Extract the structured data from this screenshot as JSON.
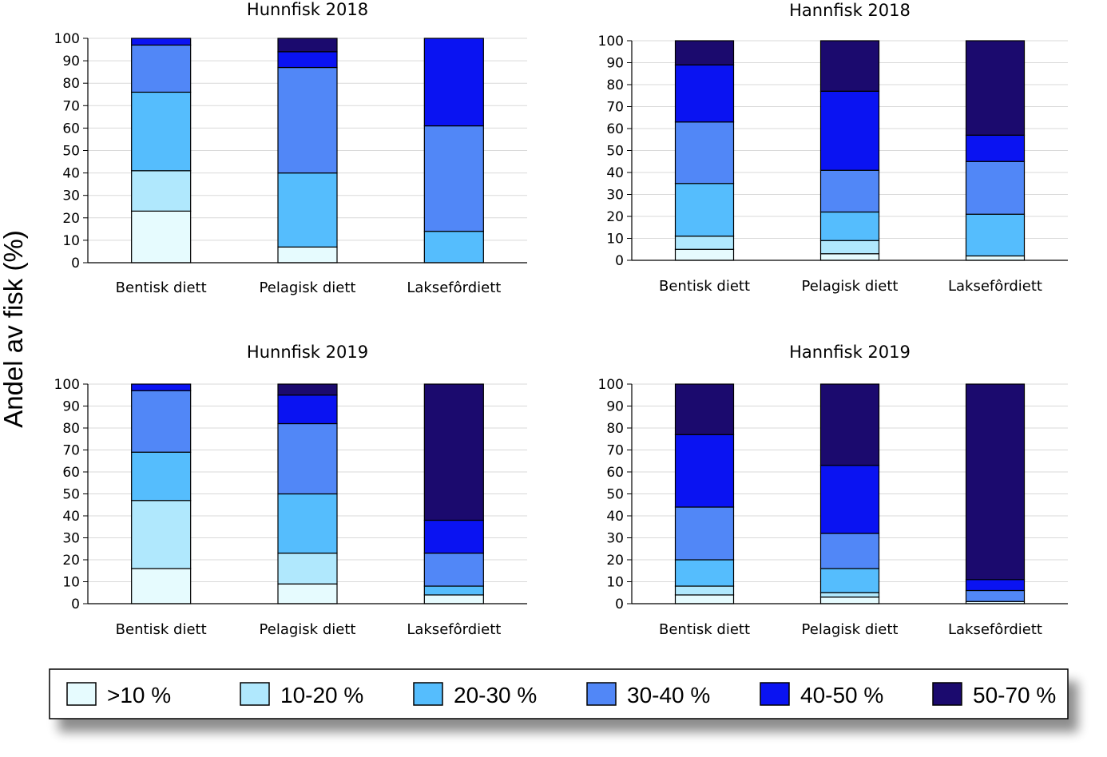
{
  "figure": {
    "ylabel": "Andel av fisk (%)"
  },
  "legend": [
    {
      "label": ">10 %",
      "color": "#e6fbfe"
    },
    {
      "label": "10-20 %",
      "color": "#b0e8fd"
    },
    {
      "label": "20-30 %",
      "color": "#55bdfd"
    },
    {
      "label": "30-40 %",
      "color": "#5187f7"
    },
    {
      "label": "40-50 %",
      "color": "#0a13f2"
    },
    {
      "label": "50-70 %",
      "color": "#1b0a6e"
    }
  ],
  "chart_data": [
    {
      "type": "bar",
      "stacked": true,
      "title": "Hunnfisk 2018",
      "categories": [
        "Bentisk diett",
        "Pelagisk diett",
        "Laksefôrdiett"
      ],
      "ylim": [
        0,
        100
      ],
      "yticks": [
        0,
        10,
        20,
        30,
        40,
        50,
        60,
        70,
        80,
        90,
        100
      ],
      "grid": true,
      "series": [
        {
          "name": ">10 %",
          "values": [
            23,
            7,
            0
          ]
        },
        {
          "name": "10-20 %",
          "values": [
            18,
            0,
            0
          ]
        },
        {
          "name": "20-30 %",
          "values": [
            35,
            33,
            14
          ]
        },
        {
          "name": "30-40 %",
          "values": [
            21,
            47,
            47
          ]
        },
        {
          "name": "40-50 %",
          "values": [
            3,
            7,
            39
          ]
        },
        {
          "name": "50-70 %",
          "values": [
            0,
            6,
            0
          ]
        }
      ]
    },
    {
      "type": "bar",
      "stacked": true,
      "title": "Hannfisk 2018",
      "categories": [
        "Bentisk diett",
        "Pelagisk diett",
        "Laksefôrdiett"
      ],
      "ylim": [
        0,
        100
      ],
      "yticks": [
        0,
        10,
        20,
        30,
        40,
        50,
        60,
        70,
        80,
        90,
        100
      ],
      "grid": true,
      "series": [
        {
          "name": ">10 %",
          "values": [
            5,
            3,
            2
          ]
        },
        {
          "name": "10-20 %",
          "values": [
            6,
            6,
            0
          ]
        },
        {
          "name": "20-30 %",
          "values": [
            24,
            13,
            19
          ]
        },
        {
          "name": "30-40 %",
          "values": [
            28,
            19,
            24
          ]
        },
        {
          "name": "40-50 %",
          "values": [
            26,
            36,
            12
          ]
        },
        {
          "name": "50-70 %",
          "values": [
            11,
            23,
            43
          ]
        }
      ]
    },
    {
      "type": "bar",
      "stacked": true,
      "title": "Hunnfisk 2019",
      "categories": [
        "Bentisk diett",
        "Pelagisk diett",
        "Laksefôrdiett"
      ],
      "ylim": [
        0,
        100
      ],
      "yticks": [
        0,
        10,
        20,
        30,
        40,
        50,
        60,
        70,
        80,
        90,
        100
      ],
      "grid": true,
      "series": [
        {
          "name": ">10 %",
          "values": [
            16,
            9,
            4
          ]
        },
        {
          "name": "10-20 %",
          "values": [
            31,
            14,
            0
          ]
        },
        {
          "name": "20-30 %",
          "values": [
            22,
            27,
            4
          ]
        },
        {
          "name": "30-40 %",
          "values": [
            28,
            32,
            15
          ]
        },
        {
          "name": "40-50 %",
          "values": [
            3,
            13,
            15
          ]
        },
        {
          "name": "50-70 %",
          "values": [
            0,
            5,
            62
          ]
        }
      ]
    },
    {
      "type": "bar",
      "stacked": true,
      "title": "Hannfisk 2019",
      "categories": [
        "Bentisk diett",
        "Pelagisk diett",
        "Laksefôrdiett"
      ],
      "ylim": [
        0,
        100
      ],
      "yticks": [
        0,
        10,
        20,
        30,
        40,
        50,
        60,
        70,
        80,
        90,
        100
      ],
      "grid": true,
      "series": [
        {
          "name": ">10 %",
          "values": [
            4,
            3,
            1
          ]
        },
        {
          "name": "10-20 %",
          "values": [
            4,
            2,
            0
          ]
        },
        {
          "name": "20-30 %",
          "values": [
            12,
            11,
            0
          ]
        },
        {
          "name": "30-40 %",
          "values": [
            24,
            16,
            5
          ]
        },
        {
          "name": "40-50 %",
          "values": [
            33,
            31,
            5
          ]
        },
        {
          "name": "50-70 %",
          "values": [
            23,
            37,
            89
          ]
        }
      ]
    }
  ]
}
